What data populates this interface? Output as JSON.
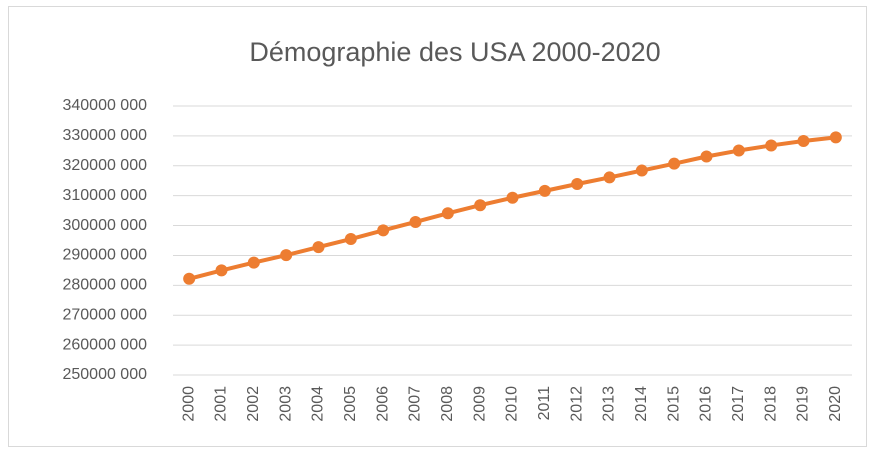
{
  "chart_data": {
    "type": "line",
    "title": "Démographie des USA 2000-2020",
    "categories": [
      "2000",
      "2001",
      "2002",
      "2003",
      "2004",
      "2005",
      "2006",
      "2007",
      "2008",
      "2009",
      "2010",
      "2011",
      "2012",
      "2013",
      "2014",
      "2015",
      "2016",
      "2017",
      "2018",
      "2019",
      "2020"
    ],
    "values": [
      282200000,
      285000000,
      287600000,
      290100000,
      292800000,
      295500000,
      298400000,
      301200000,
      304100000,
      306800000,
      309300000,
      311600000,
      313900000,
      316100000,
      318400000,
      320700000,
      323100000,
      325100000,
      326800000,
      328300000,
      329500000
    ],
    "color": "#ed7d31",
    "ylim": [
      250000000,
      340000000
    ],
    "yticks": [
      {
        "value": 250000000,
        "label": "250000 000"
      },
      {
        "value": 260000000,
        "label": "260000 000"
      },
      {
        "value": 270000000,
        "label": "270000 000"
      },
      {
        "value": 280000000,
        "label": "280000 000"
      },
      {
        "value": 290000000,
        "label": "290000 000"
      },
      {
        "value": 300000000,
        "label": "300000 000"
      },
      {
        "value": 310000000,
        "label": "310000 000"
      },
      {
        "value": 320000000,
        "label": "320000 000"
      },
      {
        "value": 330000000,
        "label": "330000 000"
      },
      {
        "value": 340000000,
        "label": "340000 000"
      }
    ],
    "grid": true
  }
}
